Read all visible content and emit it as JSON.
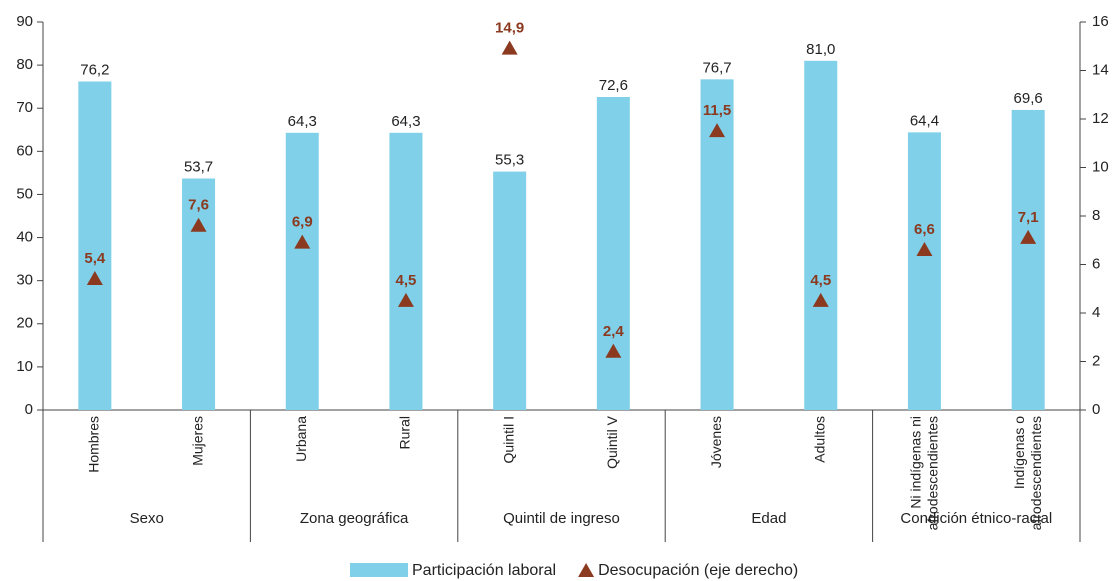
{
  "chart_data": {
    "type": "bar",
    "categories": [
      "Hombres",
      "Mujeres",
      "Urbana",
      "Rural",
      "Quintil I",
      "Quintil V",
      "Jóvenes",
      "Adultos",
      "Ni indígenas ni afrodescendientes",
      "Indígenas o afrodescendientes"
    ],
    "groups": [
      "Sexo",
      "Zona geográfica",
      "Quintil de ingreso",
      "Edad",
      "Condición étnico-racial"
    ],
    "series": [
      {
        "name": "Participación laboral",
        "color": "#7fd0e8",
        "values": [
          76.2,
          53.7,
          64.3,
          64.3,
          55.3,
          72.6,
          76.7,
          81.0,
          64.4,
          69.6
        ],
        "value_labels": [
          "76,2",
          "53,7",
          "64,3",
          "64,3",
          "55,3",
          "72,6",
          "76,7",
          "81,0",
          "64,4",
          "69,6"
        ]
      },
      {
        "name": "Desocupación (eje derecho)",
        "color": "#8b3a20",
        "axis": "y2",
        "marker": "triangle",
        "values": [
          5.4,
          7.6,
          6.9,
          4.5,
          14.9,
          2.4,
          11.5,
          4.5,
          6.6,
          7.1
        ],
        "value_labels": [
          "5,4",
          "7,6",
          "6,9",
          "4,5",
          "14,9",
          "2,4",
          "11,5",
          "4,5",
          "6,6",
          "7,1"
        ]
      }
    ],
    "ylim": [
      0,
      90
    ],
    "yticks": [
      0,
      10,
      20,
      30,
      40,
      50,
      60,
      70,
      80,
      90
    ],
    "y2lim": [
      0,
      16
    ],
    "y2ticks": [
      0,
      2,
      4,
      6,
      8,
      10,
      12,
      14,
      16
    ]
  }
}
